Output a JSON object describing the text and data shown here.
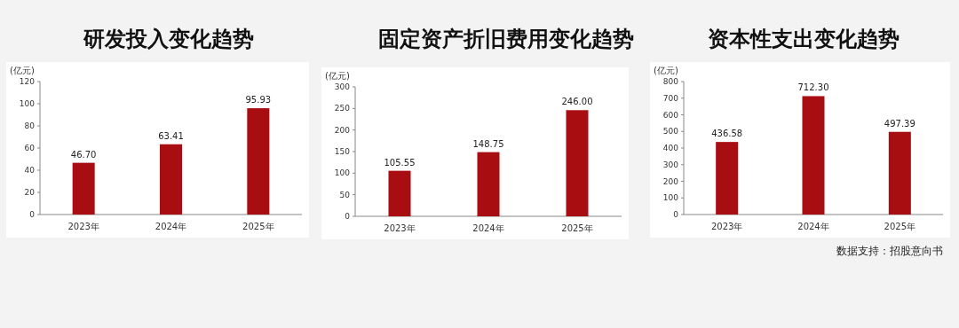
{
  "chart_data": [
    {
      "type": "bar",
      "title": "研发投入变化趋势",
      "ylabel": "(亿元)",
      "categories": [
        "2023年",
        "2024年",
        "2025年"
      ],
      "values": [
        46.7,
        63.41,
        95.93
      ],
      "value_labels": [
        "46.70",
        "63.41",
        "95.93"
      ],
      "color": "#a80d12",
      "ylim": [
        0,
        120
      ],
      "yticks": [
        0,
        20,
        40,
        60,
        80,
        100,
        120
      ]
    },
    {
      "type": "bar",
      "title": "固定资产折旧费用变化趋势",
      "ylabel": "(亿元)",
      "categories": [
        "2023年",
        "2024年",
        "2025年"
      ],
      "values": [
        105.55,
        148.75,
        246.0
      ],
      "value_labels": [
        "105.55",
        "148.75",
        "246.00"
      ],
      "color": "#a80d12",
      "ylim": [
        0,
        300
      ],
      "yticks": [
        0,
        50,
        100,
        150,
        200,
        250,
        300
      ]
    },
    {
      "type": "bar",
      "title": "资本性支出变化趋势",
      "ylabel": "(亿元)",
      "categories": [
        "2023年",
        "2024年",
        "2025年"
      ],
      "values": [
        436.58,
        712.3,
        497.39
      ],
      "value_labels": [
        "436.58",
        "712.30",
        "497.39"
      ],
      "color": "#a80d12",
      "ylim": [
        0,
        800
      ],
      "yticks": [
        0,
        100,
        200,
        300,
        400,
        500,
        600,
        700,
        800
      ],
      "annotations": [
        "数据支持：招股意向书"
      ]
    }
  ]
}
